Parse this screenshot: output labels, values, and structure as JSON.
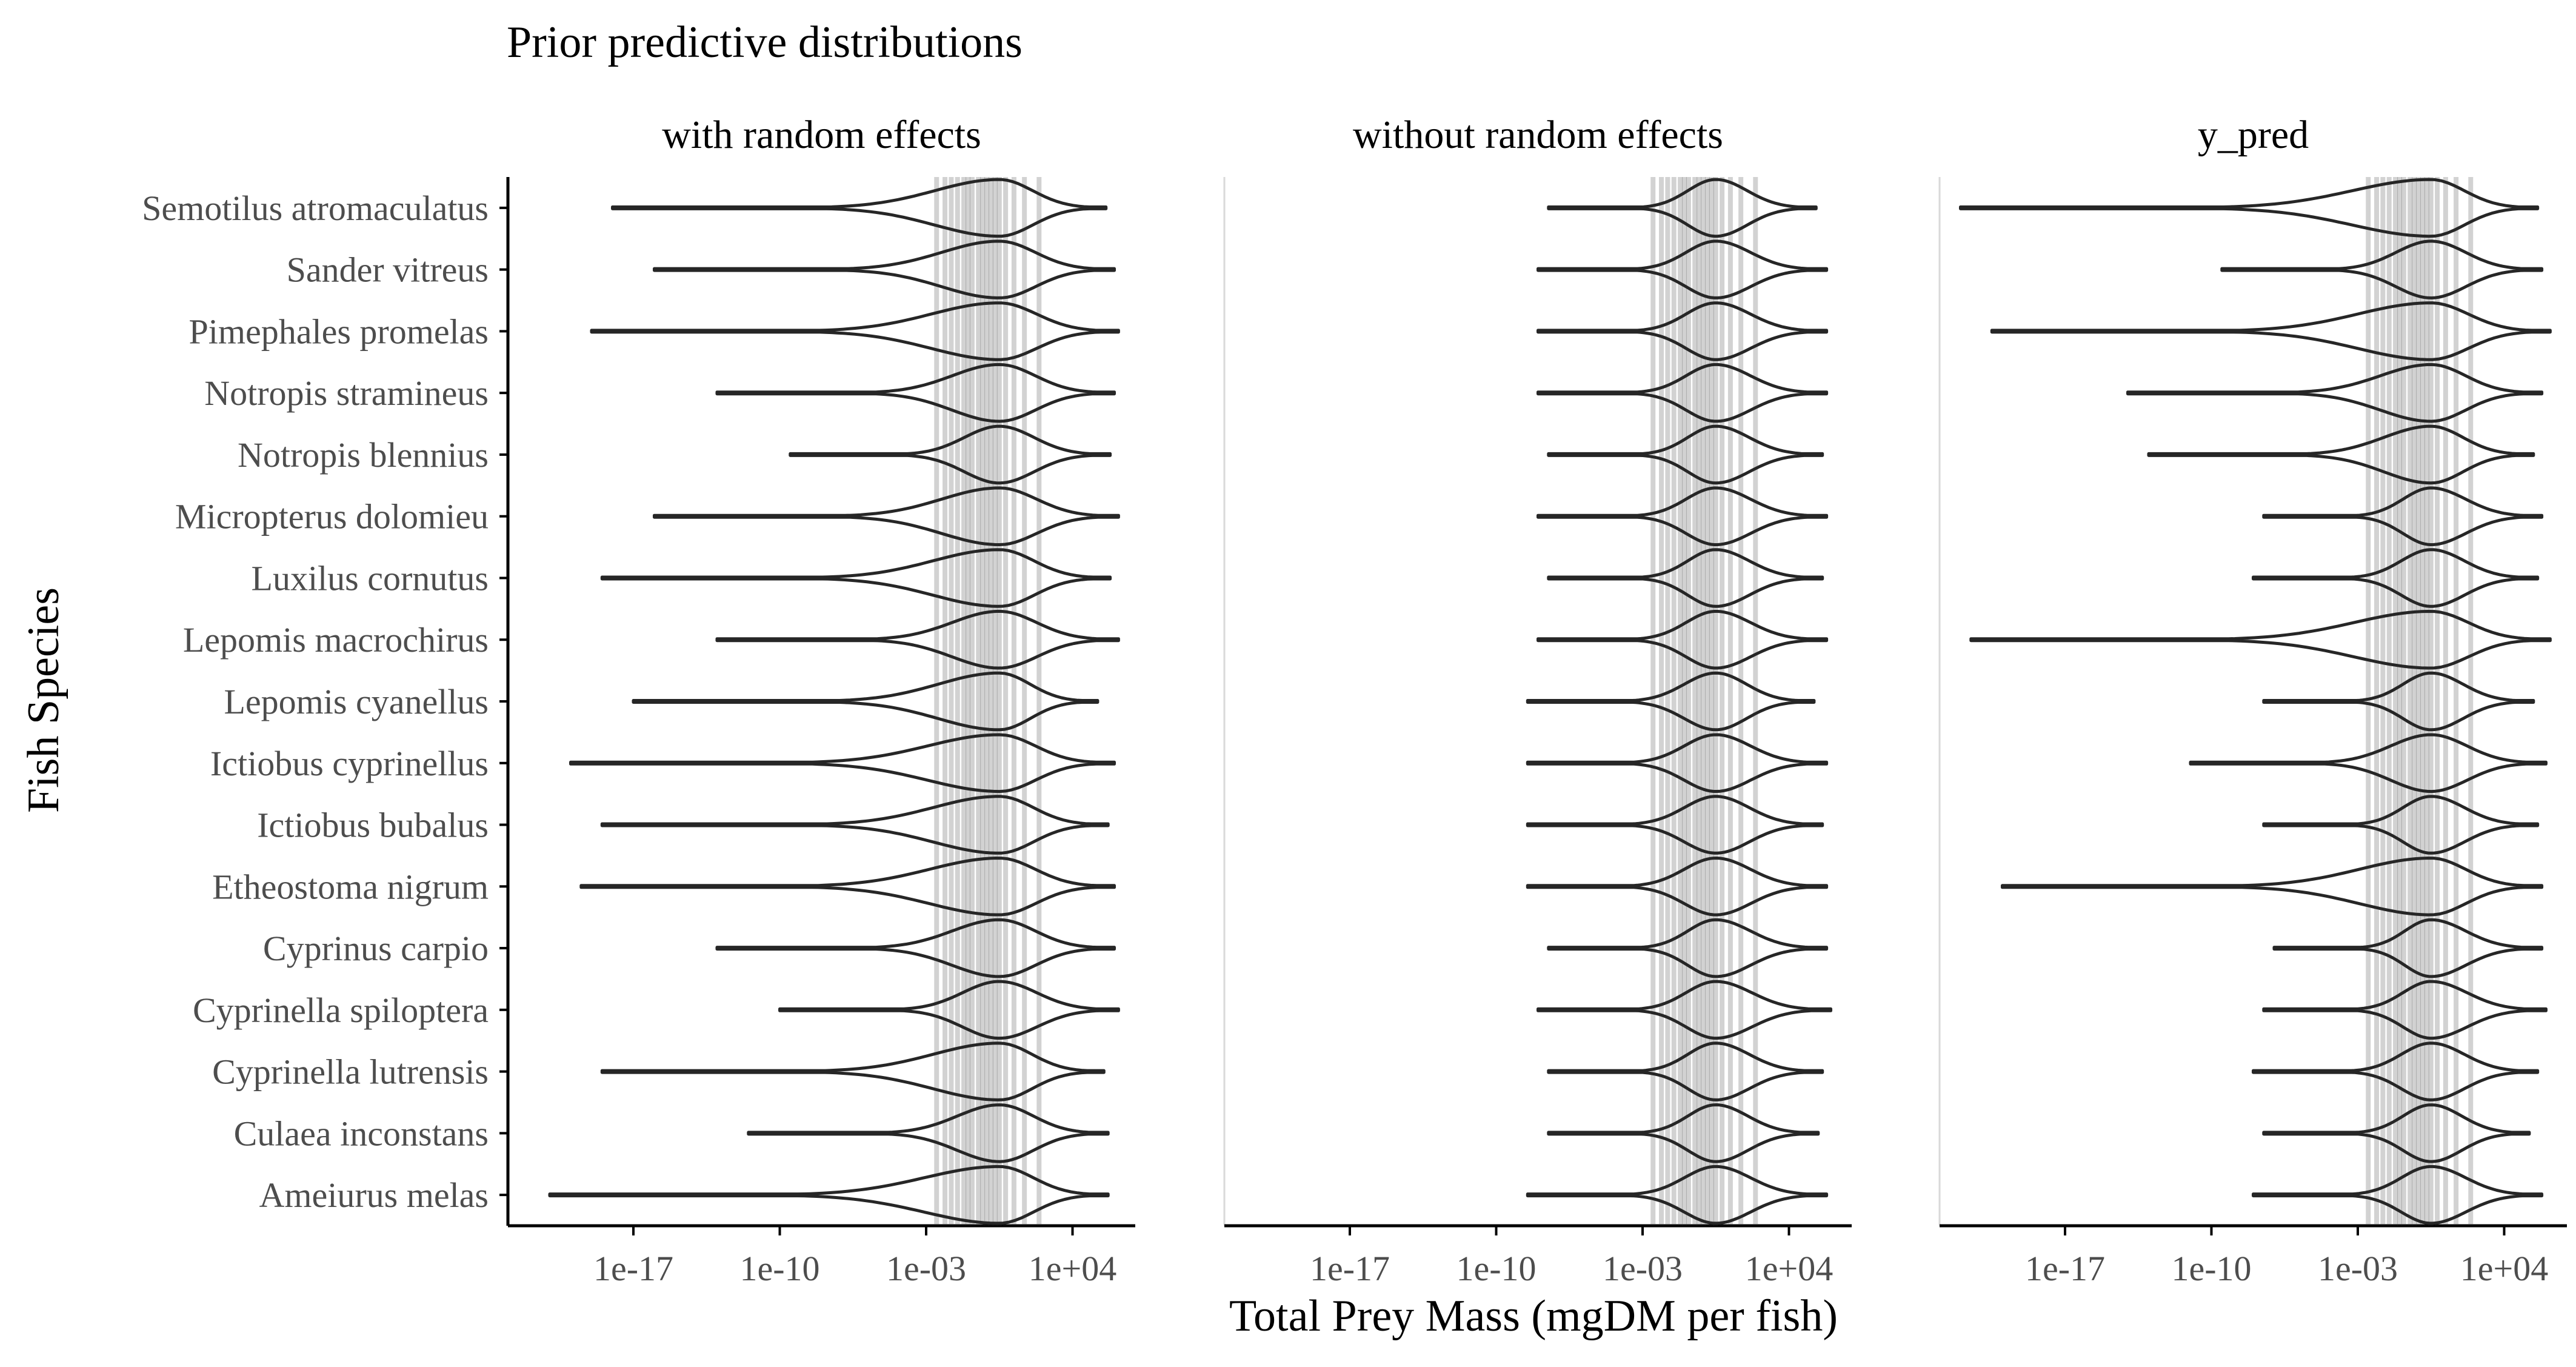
{
  "chart_data": {
    "type": "violin",
    "title": "Prior predictive distributions",
    "xlabel": "Total Prey Mass (mgDM per fish)",
    "ylabel": "Fish Species",
    "x_scale": "log10",
    "xlim": [
      1e-23,
      10000000.0
    ],
    "x_ticks": [
      1e-17,
      1e-10,
      0.001,
      10000
    ],
    "x_tick_labels": [
      "1e-17",
      "1e-10",
      "1e-03",
      "1e+04"
    ],
    "grid": false,
    "categories": [
      "Semotilus atromaculatus",
      "Sander vitreus",
      "Pimephales promelas",
      "Notropis stramineus",
      "Notropis blennius",
      "Micropterus dolomieu",
      "Luxilus cornutus",
      "Lepomis macrochirus",
      "Lepomis cyanellus",
      "Ictiobus cyprinellus",
      "Ictiobus bubalus",
      "Etheostoma nigrum",
      "Cyprinus carpio",
      "Cyprinella spiloptera",
      "Cyprinella lutrensis",
      "Culaea inconstans",
      "Ameiurus melas"
    ],
    "observed_values_log10": [
      -2.5,
      -2.1,
      -1.8,
      -1.5,
      -1.2,
      -1.0,
      -0.8,
      -0.5,
      -0.3,
      -0.1,
      0.1,
      0.3,
      0.5,
      0.8,
      1.2,
      1.7,
      2.4
    ],
    "panels": [
      {
        "name": "with random effects",
        "violins": [
          {
            "species": "Semotilus atromaculatus",
            "min": -18,
            "max": 5.6,
            "median": 0.5
          },
          {
            "species": "Sander vitreus",
            "min": -16,
            "max": 6,
            "median": 0.5
          },
          {
            "species": "Pimephales promelas",
            "min": -19,
            "max": 6.2,
            "median": 0.5
          },
          {
            "species": "Notropis stramineus",
            "min": -13,
            "max": 6,
            "median": 0.5
          },
          {
            "species": "Notropis blennius",
            "min": -9.5,
            "max": 5.8,
            "median": 0.5
          },
          {
            "species": "Micropterus dolomieu",
            "min": -16,
            "max": 6.2,
            "median": 0.5
          },
          {
            "species": "Luxilus cornutus",
            "min": -18.5,
            "max": 5.8,
            "median": 0.5
          },
          {
            "species": "Lepomis macrochirus",
            "min": -13,
            "max": 6.2,
            "median": 0.5
          },
          {
            "species": "Lepomis cyanellus",
            "min": -17,
            "max": 5.2,
            "median": 0.5
          },
          {
            "species": "Ictiobus cyprinellus",
            "min": -20,
            "max": 6,
            "median": 0.5
          },
          {
            "species": "Ictiobus bubalus",
            "min": -18.5,
            "max": 5.7,
            "median": 0.5
          },
          {
            "species": "Etheostoma nigrum",
            "min": -19.5,
            "max": 6,
            "median": 0.5
          },
          {
            "species": "Cyprinus carpio",
            "min": -13,
            "max": 6,
            "median": 0.5
          },
          {
            "species": "Cyprinella spiloptera",
            "min": -10,
            "max": 6.2,
            "median": 0.5
          },
          {
            "species": "Cyprinella lutrensis",
            "min": -18.5,
            "max": 5.5,
            "median": 0.5
          },
          {
            "species": "Culaea inconstans",
            "min": -11.5,
            "max": 5.7,
            "median": 0.5
          },
          {
            "species": "Ameiurus melas",
            "min": -21,
            "max": 5.7,
            "median": 0.5
          }
        ]
      },
      {
        "name": "without random effects",
        "violins": [
          {
            "species": "Semotilus atromaculatus",
            "min": -7.5,
            "max": 5.3,
            "median": 0.5
          },
          {
            "species": "Sander vitreus",
            "min": -8,
            "max": 5.8,
            "median": 0.5
          },
          {
            "species": "Pimephales promelas",
            "min": -8,
            "max": 5.8,
            "median": 0.5
          },
          {
            "species": "Notropis stramineus",
            "min": -8,
            "max": 5.8,
            "median": 0.5
          },
          {
            "species": "Notropis blennius",
            "min": -7.5,
            "max": 5.6,
            "median": 0.5
          },
          {
            "species": "Micropterus dolomieu",
            "min": -8,
            "max": 5.8,
            "median": 0.5
          },
          {
            "species": "Luxilus cornutus",
            "min": -7.5,
            "max": 5.6,
            "median": 0.5
          },
          {
            "species": "Lepomis macrochirus",
            "min": -8,
            "max": 5.8,
            "median": 0.5
          },
          {
            "species": "Lepomis cyanellus",
            "min": -8.5,
            "max": 5.2,
            "median": 0.5
          },
          {
            "species": "Ictiobus cyprinellus",
            "min": -8.5,
            "max": 5.8,
            "median": 0.5
          },
          {
            "species": "Ictiobus bubalus",
            "min": -8.5,
            "max": 5.6,
            "median": 0.5
          },
          {
            "species": "Etheostoma nigrum",
            "min": -8.5,
            "max": 5.8,
            "median": 0.5
          },
          {
            "species": "Cyprinus carpio",
            "min": -7.5,
            "max": 5.8,
            "median": 0.5
          },
          {
            "species": "Cyprinella spiloptera",
            "min": -8,
            "max": 6,
            "median": 0.5
          },
          {
            "species": "Cyprinella lutrensis",
            "min": -7.5,
            "max": 5.6,
            "median": 0.5
          },
          {
            "species": "Culaea inconstans",
            "min": -7.5,
            "max": 5.4,
            "median": 0.5
          },
          {
            "species": "Ameiurus melas",
            "min": -8.5,
            "max": 5.8,
            "median": 0.5
          }
        ]
      },
      {
        "name": "y_pred",
        "violins": [
          {
            "species": "Semotilus atromaculatus",
            "min": -22,
            "max": 5.6,
            "median": 0.5
          },
          {
            "species": "Sander vitreus",
            "min": -9.5,
            "max": 5.8,
            "median": 0.5
          },
          {
            "species": "Pimephales promelas",
            "min": -20.5,
            "max": 6.2,
            "median": 0.5
          },
          {
            "species": "Notropis stramineus",
            "min": -14,
            "max": 5.8,
            "median": 0.5
          },
          {
            "species": "Notropis blennius",
            "min": -13,
            "max": 5.4,
            "median": 0.5
          },
          {
            "species": "Micropterus dolomieu",
            "min": -7.5,
            "max": 5.8,
            "median": 0.5
          },
          {
            "species": "Luxilus cornutus",
            "min": -8,
            "max": 5.6,
            "median": 0.5
          },
          {
            "species": "Lepomis macrochirus",
            "min": -21.5,
            "max": 6.2,
            "median": 0.5
          },
          {
            "species": "Lepomis cyanellus",
            "min": -7.5,
            "max": 5.4,
            "median": 0.5
          },
          {
            "species": "Ictiobus cyprinellus",
            "min": -11,
            "max": 6,
            "median": 0.5
          },
          {
            "species": "Ictiobus bubalus",
            "min": -7.5,
            "max": 5.6,
            "median": 0.5
          },
          {
            "species": "Etheostoma nigrum",
            "min": -20,
            "max": 5.8,
            "median": 0.5
          },
          {
            "species": "Cyprinus carpio",
            "min": -7,
            "max": 5.8,
            "median": 0.5
          },
          {
            "species": "Cyprinella spiloptera",
            "min": -7.5,
            "max": 6,
            "median": 0.5
          },
          {
            "species": "Cyprinella lutrensis",
            "min": -8,
            "max": 5.6,
            "median": 0.5
          },
          {
            "species": "Culaea inconstans",
            "min": -7.5,
            "max": 5.2,
            "median": 0.5
          },
          {
            "species": "Ameiurus melas",
            "min": -8,
            "max": 5.8,
            "median": 0.5
          }
        ]
      }
    ],
    "colors": {
      "violin_line": "#262626",
      "observed_line": "#333333",
      "axis": "#000000",
      "tick_label": "#4d4d4d"
    }
  }
}
